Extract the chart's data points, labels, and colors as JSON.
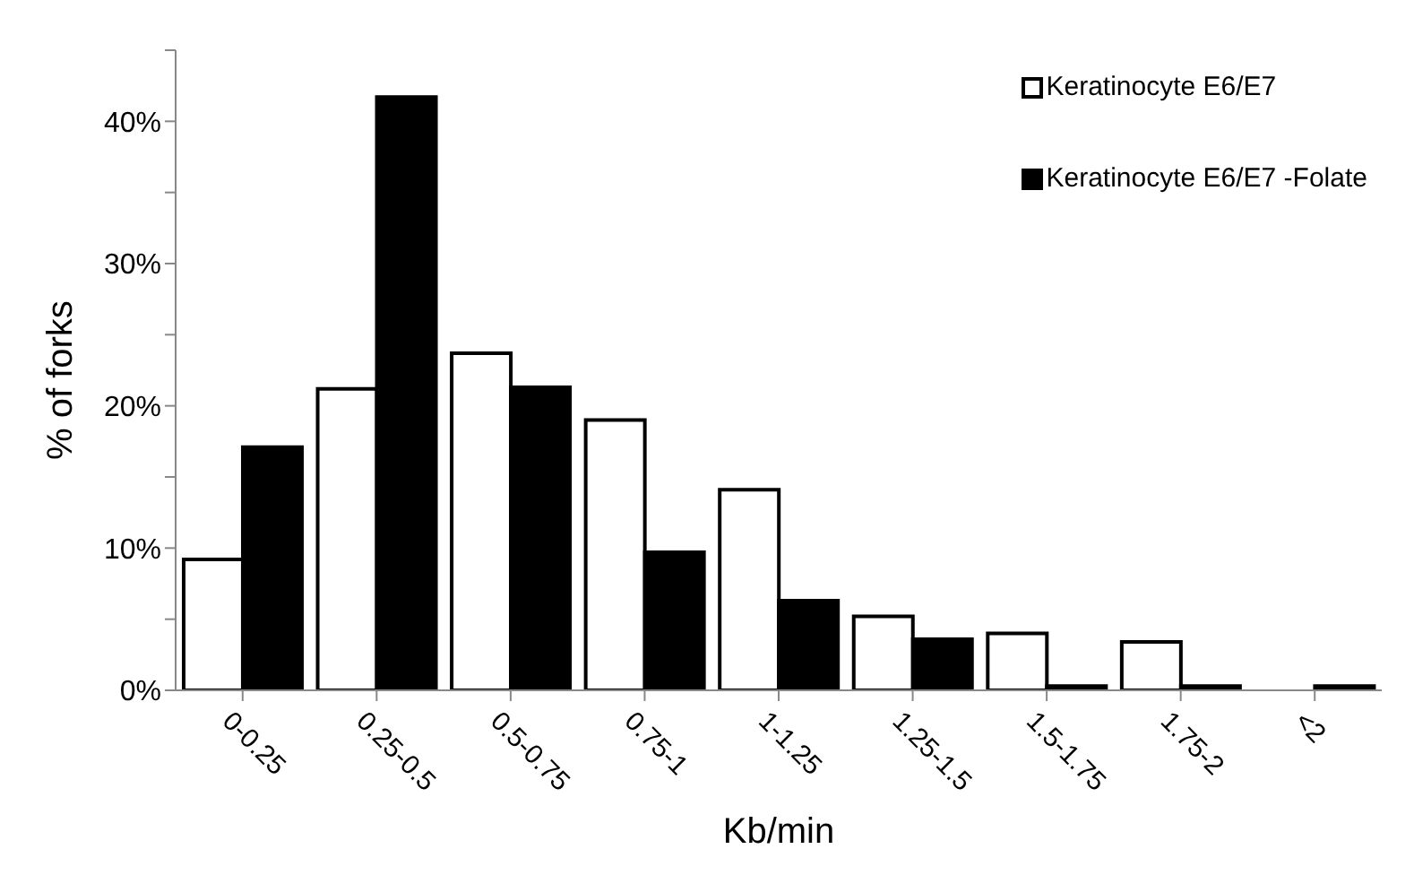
{
  "chart_data": {
    "type": "bar",
    "xlabel": "Kb/min",
    "ylabel": "% of forks",
    "categories": [
      "0-0.25",
      "0.25-0.5",
      "0.5-0.75",
      "0.75-1",
      "1-1.25",
      "1.25-1.5",
      "1.5-1.75",
      "1.75-2",
      "<2"
    ],
    "series": [
      {
        "name": "Keratinocyte E6/E7",
        "color": "#ffffff",
        "values": [
          9.2,
          21.2,
          23.7,
          19.0,
          14.1,
          5.2,
          4.0,
          3.4,
          0
        ]
      },
      {
        "name": "Keratinocyte E6/E7 -Folate",
        "color": "#000000",
        "values": [
          17.1,
          41.7,
          21.3,
          9.7,
          6.3,
          3.6,
          0.3,
          0.3,
          0.3
        ]
      }
    ],
    "ylim": [
      0,
      45
    ],
    "yticks": [
      {
        "value": 0,
        "label": "0%"
      },
      {
        "value": 5,
        "label": null
      },
      {
        "value": 10,
        "label": "10%"
      },
      {
        "value": 15,
        "label": null
      },
      {
        "value": 20,
        "label": "20%"
      },
      {
        "value": 25,
        "label": null
      },
      {
        "value": 30,
        "label": "30%"
      },
      {
        "value": 35,
        "label": null
      },
      {
        "value": 40,
        "label": "40%"
      },
      {
        "value": 45,
        "label": null
      }
    ],
    "grid": false,
    "legend": "top right"
  }
}
